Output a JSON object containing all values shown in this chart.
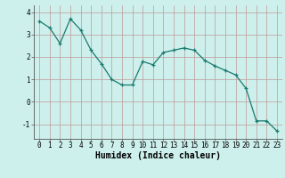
{
  "x": [
    0,
    1,
    2,
    3,
    4,
    5,
    6,
    7,
    8,
    9,
    10,
    11,
    12,
    13,
    14,
    15,
    16,
    17,
    18,
    19,
    20,
    21,
    22,
    23
  ],
  "y": [
    3.6,
    3.3,
    2.6,
    3.7,
    3.2,
    2.3,
    1.7,
    1.0,
    0.75,
    0.75,
    1.8,
    1.65,
    2.2,
    2.3,
    2.4,
    2.3,
    1.85,
    1.6,
    1.4,
    1.2,
    0.6,
    -0.85,
    -0.85,
    -1.3
  ],
  "xlabel": "Humidex (Indice chaleur)",
  "xlim_left": -0.5,
  "xlim_right": 23.5,
  "ylim_bottom": -1.65,
  "ylim_top": 4.3,
  "yticks": [
    -1,
    0,
    1,
    2,
    3,
    4
  ],
  "xticks": [
    0,
    1,
    2,
    3,
    4,
    5,
    6,
    7,
    8,
    9,
    10,
    11,
    12,
    13,
    14,
    15,
    16,
    17,
    18,
    19,
    20,
    21,
    22,
    23
  ],
  "line_color": "#1a7a6e",
  "marker": "+",
  "marker_size": 3.5,
  "marker_linewidth": 0.9,
  "line_width": 0.9,
  "bg_color": "#cdf0ec",
  "grid_color": "#c09898",
  "grid_linewidth": 0.5,
  "tick_label_fontsize": 5.5,
  "xlabel_fontsize": 7,
  "xlabel_fontweight": "bold"
}
